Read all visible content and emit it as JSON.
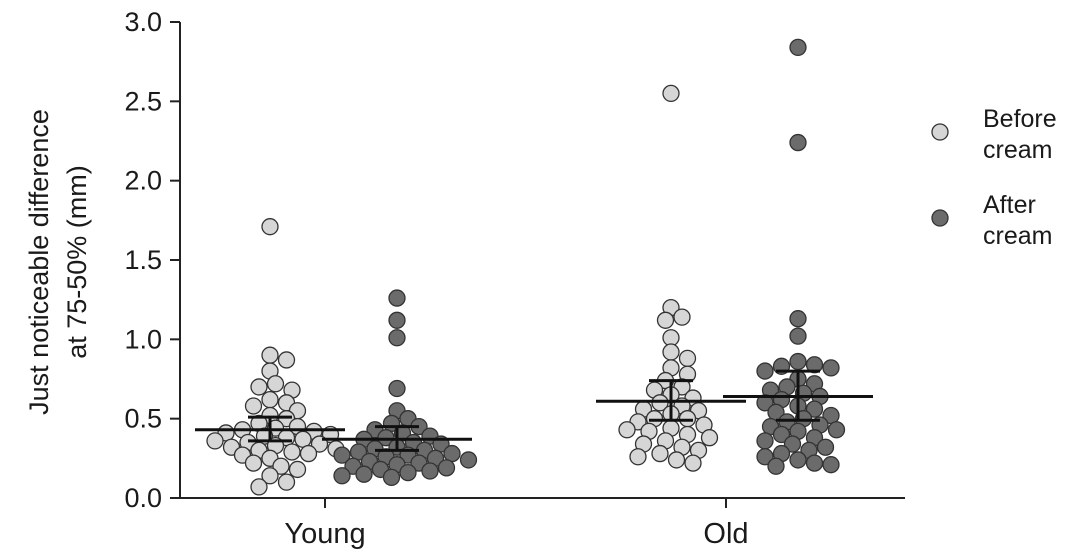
{
  "chart_data": {
    "type": "scatter",
    "ylabel": [
      "Just noticeable difference",
      "at 75-50% (mm)"
    ],
    "ylim": [
      0,
      3.0
    ],
    "yticks": [
      "0.0",
      "0.5",
      "1.0",
      "1.5",
      "2.0",
      "2.5",
      "3.0"
    ],
    "categories": [
      "Young",
      "Old"
    ],
    "grid": false,
    "legend_position": "right",
    "series": [
      {
        "name": "Before cream",
        "color": "#d6d6d6",
        "summary": [
          {
            "category": "Young",
            "mean": 0.43,
            "ci_low": 0.36,
            "ci_high": 0.51
          },
          {
            "category": "Old",
            "mean": 0.61,
            "ci_low": 0.49,
            "ci_high": 0.74
          }
        ],
        "points": [
          {
            "category": "Young",
            "values": [
              1.71,
              0.9,
              0.87,
              0.8,
              0.72,
              0.7,
              0.68,
              0.62,
              0.6,
              0.58,
              0.55,
              0.52,
              0.5,
              0.47,
              0.45,
              0.44,
              0.43,
              0.42,
              0.41,
              0.4,
              0.39,
              0.38,
              0.37,
              0.36,
              0.35,
              0.34,
              0.33,
              0.32,
              0.31,
              0.3,
              0.29,
              0.28,
              0.27,
              0.25,
              0.22,
              0.2,
              0.18,
              0.14,
              0.1,
              0.07
            ]
          },
          {
            "category": "Old",
            "values": [
              2.55,
              1.2,
              1.14,
              1.12,
              1.01,
              0.92,
              0.88,
              0.82,
              0.78,
              0.74,
              0.7,
              0.68,
              0.65,
              0.63,
              0.6,
              0.58,
              0.56,
              0.55,
              0.53,
              0.5,
              0.5,
              0.48,
              0.46,
              0.44,
              0.43,
              0.42,
              0.4,
              0.38,
              0.36,
              0.34,
              0.32,
              0.3,
              0.28,
              0.26,
              0.24,
              0.22
            ]
          }
        ]
      },
      {
        "name": "After cream",
        "color": "#6b6b6b",
        "summary": [
          {
            "category": "Young",
            "mean": 0.37,
            "ci_low": 0.3,
            "ci_high": 0.45
          },
          {
            "category": "Old",
            "mean": 0.64,
            "ci_low": 0.49,
            "ci_high": 0.8
          }
        ],
        "points": [
          {
            "category": "Young",
            "values": [
              1.26,
              1.12,
              1.01,
              0.69,
              0.55,
              0.5,
              0.47,
              0.45,
              0.43,
              0.41,
              0.39,
              0.38,
              0.37,
              0.35,
              0.34,
              0.32,
              0.31,
              0.3,
              0.29,
              0.28,
              0.27,
              0.27,
              0.26,
              0.25,
              0.24,
              0.23,
              0.22,
              0.21,
              0.2,
              0.19,
              0.18,
              0.17,
              0.16,
              0.15,
              0.14,
              0.13
            ]
          },
          {
            "category": "Old",
            "values": [
              2.84,
              2.24,
              1.13,
              1.02,
              0.86,
              0.84,
              0.83,
              0.82,
              0.8,
              0.75,
              0.72,
              0.7,
              0.68,
              0.66,
              0.64,
              0.62,
              0.6,
              0.58,
              0.56,
              0.54,
              0.52,
              0.5,
              0.48,
              0.46,
              0.45,
              0.43,
              0.42,
              0.4,
              0.38,
              0.36,
              0.34,
              0.32,
              0.3,
              0.28,
              0.26,
              0.24,
              0.22,
              0.21,
              0.2
            ]
          }
        ]
      }
    ]
  }
}
